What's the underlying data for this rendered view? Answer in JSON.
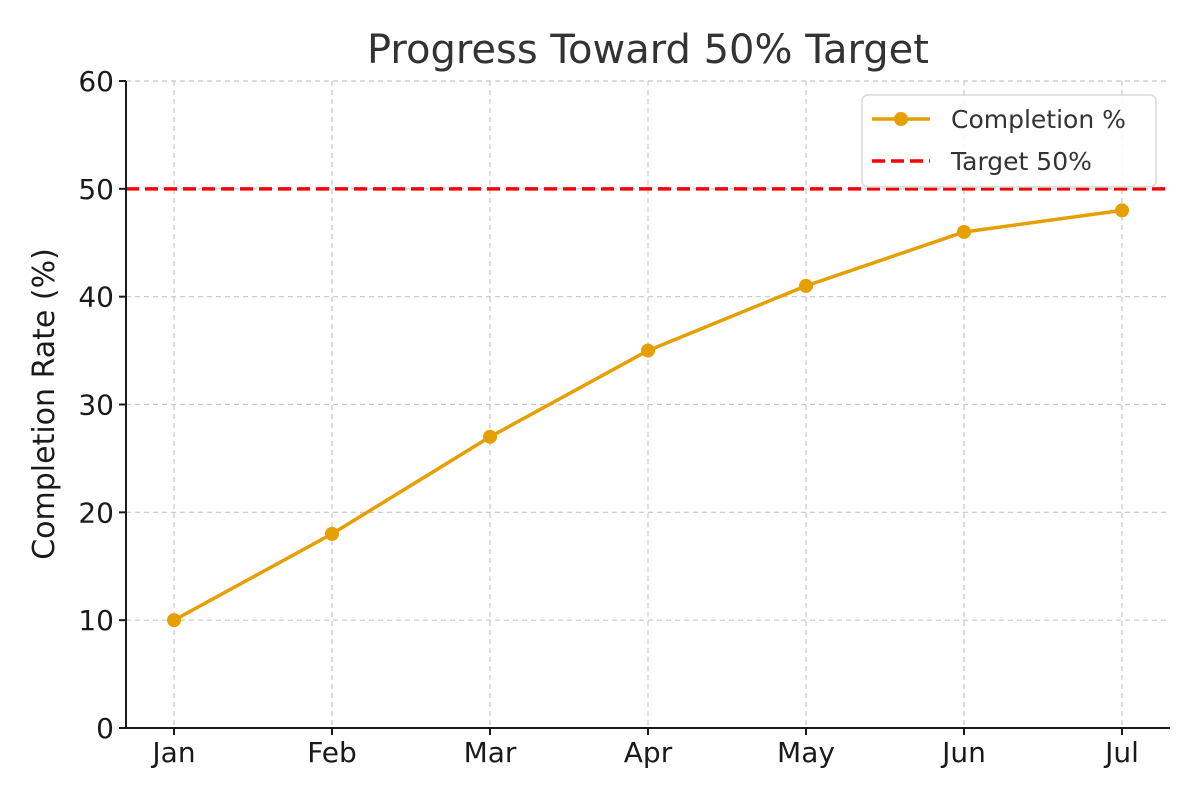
{
  "chart_data": {
    "type": "line",
    "title": "Progress Toward 50% Target",
    "xlabel": "",
    "ylabel": "Completion Rate (%)",
    "categories": [
      "Jan",
      "Feb",
      "Mar",
      "Apr",
      "May",
      "Jun",
      "Jul"
    ],
    "series": [
      {
        "name": "Completion %",
        "values": [
          10,
          18,
          27,
          35,
          41,
          46,
          48
        ],
        "color": "#E69F00",
        "marker": "circle",
        "line_style": "solid"
      }
    ],
    "reference_lines": [
      {
        "name": "Target 50%",
        "value": 50,
        "color": "#FF0000",
        "line_style": "dashed"
      }
    ],
    "yticks": [
      0,
      10,
      20,
      30,
      40,
      50,
      60
    ],
    "ylim": [
      0,
      60
    ],
    "grid": true,
    "legend_position": "top-right"
  }
}
